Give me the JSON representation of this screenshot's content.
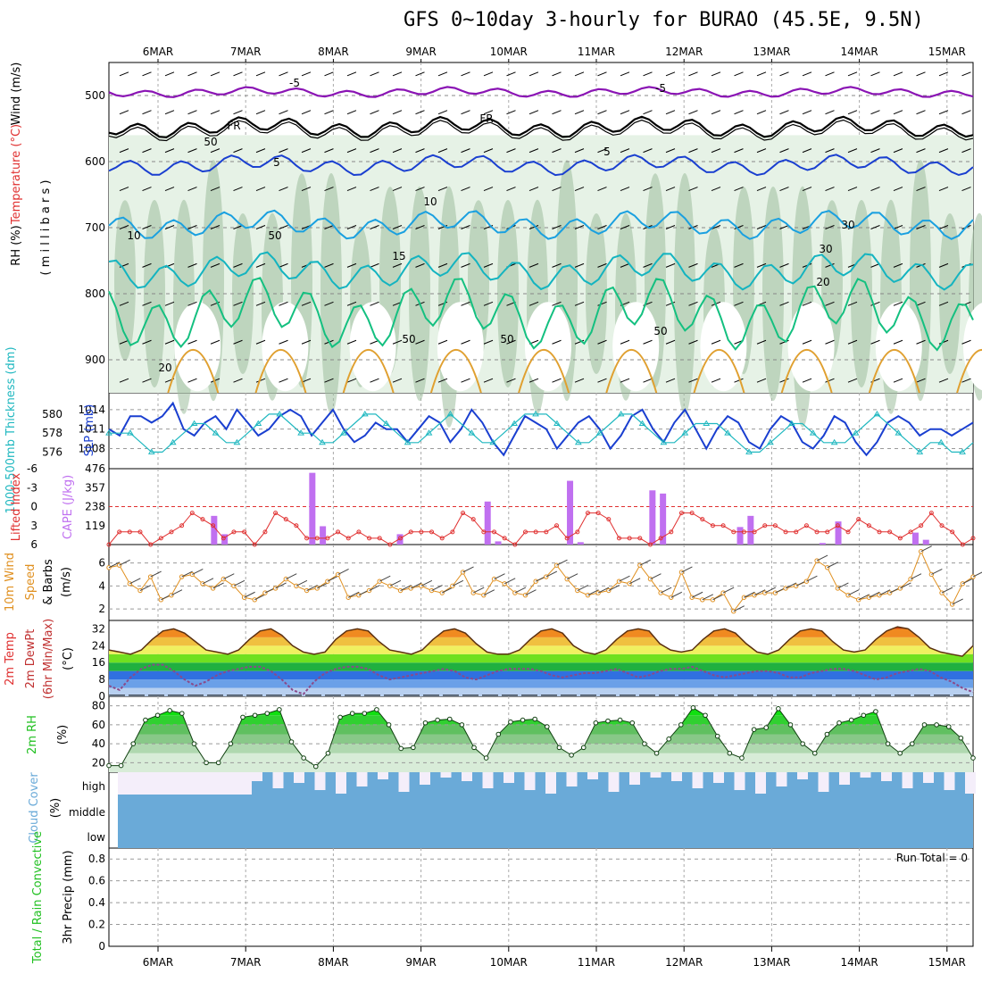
{
  "title": "GFS 0~10day 3-hourly for BURAO (45.5E, 9.5N)",
  "colors": {
    "rh_fill": "#6aa66a",
    "temp_purple": "#8a14b4",
    "temp_black": "#000000",
    "temp_blue": "#1a3fd0",
    "temp_lblue": "#1aa0e0",
    "temp_teal": "#14b4c0",
    "temp_green": "#14c080",
    "temp_orange": "#e0a030",
    "slp": "#1a3fd0",
    "thickness": "#20b8c0",
    "lifted": "#e03030",
    "cape": "#c070f0",
    "wind": "#e09020",
    "rh2m": "#20c020",
    "cloud": "#6aaad8"
  },
  "chart_data": {
    "type": "line",
    "title": "GFS 0~10day 3-hourly for BURAO (45.5E, 9.5N)",
    "x_dates": [
      "6MAR",
      "7MAR",
      "8MAR",
      "9MAR",
      "10MAR",
      "11MAR",
      "12MAR",
      "13MAR",
      "14MAR",
      "15MAR"
    ],
    "panels": [
      {
        "id": "upper_air",
        "ylabel_parts": [
          "Wind (m/s)",
          "Temperature (°C)",
          "RH (%)"
        ],
        "ylabel_mid": "( m i l l i b a r s )",
        "yticks": [
          500,
          600,
          700,
          800,
          900
        ],
        "ylim": [
          950,
          450
        ],
        "contour_labels": [
          "-5",
          "-5",
          "FR",
          "FR",
          "5",
          "5",
          "10",
          "10",
          "15",
          "20",
          "20",
          "50",
          "50",
          "30",
          "30",
          "50",
          "50",
          "50"
        ]
      },
      {
        "id": "slp_thickness",
        "ylabel_left": "1000-500mb Thickness (dm)",
        "ylabel_right": "SLP (mb)",
        "yticks_left": [
          580,
          578,
          576
        ],
        "yticks_right": [
          1014,
          1011,
          1008
        ],
        "slp_values": [
          1011,
          1010,
          1013,
          1013,
          1012,
          1013,
          1015,
          1011,
          1010,
          1012,
          1013,
          1011,
          1014,
          1012,
          1010,
          1011,
          1013,
          1014,
          1013,
          1010,
          1012,
          1014,
          1011,
          1009,
          1010,
          1012,
          1011,
          1011,
          1009,
          1011,
          1013,
          1012,
          1009,
          1011,
          1014,
          1012,
          1009,
          1007,
          1010,
          1013,
          1012,
          1011,
          1008,
          1010,
          1012,
          1013,
          1011,
          1008,
          1010,
          1013,
          1014,
          1011,
          1009,
          1012,
          1014,
          1011,
          1008,
          1011,
          1013,
          1012,
          1009,
          1008,
          1011,
          1013,
          1012,
          1009,
          1008,
          1010,
          1013,
          1012,
          1009,
          1007,
          1009,
          1012,
          1013,
          1012,
          1010,
          1011,
          1011,
          1010,
          1011,
          1012
        ],
        "thickness_values": [
          578,
          578,
          578,
          577,
          576,
          576,
          577,
          578,
          579,
          579,
          578,
          577,
          577,
          578,
          579,
          580,
          580,
          579,
          578,
          578,
          577,
          577,
          578,
          579,
          580,
          580,
          579,
          578,
          577,
          577,
          578,
          579,
          580,
          579,
          578,
          577,
          577,
          578,
          579,
          580,
          580,
          580,
          579,
          578,
          577,
          577,
          578,
          579,
          580,
          580,
          579,
          578,
          577,
          577,
          578,
          579,
          579,
          579,
          578,
          577,
          576,
          576,
          577,
          578,
          579,
          579,
          578,
          577,
          577,
          577,
          578,
          579,
          580,
          579,
          578,
          577,
          576,
          577,
          577,
          576,
          576,
          577
        ]
      },
      {
        "id": "lifted_cape",
        "ylabel_left": "Lifted Index",
        "ylabel_right": "CAPE (J/kg)",
        "yticks_left": [
          "-6",
          "-3",
          "0",
          "3",
          "6"
        ],
        "yticks_right": [
          476,
          357,
          238,
          119
        ],
        "lifted_values": [
          6,
          4,
          4,
          4,
          6,
          5,
          4,
          3,
          1,
          2,
          3,
          5,
          4,
          4,
          6,
          4,
          1,
          2,
          3,
          5,
          5,
          5,
          4,
          5,
          4,
          5,
          5,
          6,
          5,
          4,
          4,
          4,
          5,
          4,
          1,
          2,
          4,
          4,
          5,
          6,
          4,
          4,
          4,
          3,
          5,
          4,
          1,
          1,
          2,
          5,
          5,
          5,
          6,
          5,
          4,
          1,
          1,
          2,
          3,
          3,
          4,
          4,
          4,
          3,
          3,
          4,
          4,
          3,
          4,
          4,
          3,
          4,
          2,
          3,
          4,
          4,
          5,
          4,
          3,
          1,
          3,
          4,
          6,
          5
        ],
        "cape_bars": [
          {
            "x": 6.64,
            "v": 180
          },
          {
            "x": 6.76,
            "v": 65
          },
          {
            "x": 7.76,
            "v": 450
          },
          {
            "x": 7.88,
            "v": 115
          },
          {
            "x": 8.76,
            "v": 65
          },
          {
            "x": 9.76,
            "v": 270
          },
          {
            "x": 9.88,
            "v": 20
          },
          {
            "x": 10.7,
            "v": 400
          },
          {
            "x": 10.82,
            "v": 15
          },
          {
            "x": 11.64,
            "v": 340
          },
          {
            "x": 11.76,
            "v": 320
          },
          {
            "x": 12.64,
            "v": 110
          },
          {
            "x": 12.76,
            "v": 180
          },
          {
            "x": 13.58,
            "v": 10
          },
          {
            "x": 13.76,
            "v": 145
          },
          {
            "x": 14.64,
            "v": 75
          },
          {
            "x": 14.76,
            "v": 30
          }
        ]
      },
      {
        "id": "wind10m",
        "ylabel": "10m Wind Speed (m/s) & Barbs",
        "yticks": [
          6,
          4,
          2
        ],
        "ylim": [
          1,
          7.6
        ],
        "wind_values": [
          5.6,
          5.8,
          4.2,
          3.6,
          4.8,
          2.8,
          3.2,
          4.8,
          5.0,
          4.2,
          3.8,
          4.6,
          4.0,
          3.0,
          2.8,
          3.4,
          3.8,
          4.6,
          4.0,
          3.6,
          3.8,
          4.4,
          5.0,
          3.0,
          3.2,
          3.6,
          4.4,
          4.0,
          3.6,
          3.8,
          4.0,
          3.6,
          3.4,
          4.0,
          5.2,
          3.4,
          3.2,
          4.6,
          4.2,
          3.4,
          3.2,
          4.4,
          4.8,
          5.8,
          4.6,
          3.6,
          3.2,
          3.4,
          3.6,
          4.4,
          4.2,
          5.8,
          4.6,
          3.4,
          3.0,
          5.2,
          3.0,
          2.8,
          2.8,
          3.4,
          1.8,
          3.0,
          3.2,
          3.4,
          3.4,
          3.8,
          4.0,
          4.4,
          6.2,
          5.6,
          3.8,
          3.2,
          2.8,
          3.0,
          3.2,
          3.4,
          3.8,
          4.6,
          7.0,
          5.0,
          3.4,
          2.4,
          4.2,
          4.8
        ]
      },
      {
        "id": "temp2m",
        "ylabel": "2m Temp 2m DewPt (6hr Min/Max) (°C)",
        "yticks": [
          32,
          24,
          16,
          8,
          0
        ],
        "temp_values": [
          22,
          21,
          20,
          22,
          27,
          31,
          32,
          30,
          26,
          22,
          21,
          20,
          22,
          27,
          31,
          32,
          29,
          24,
          21,
          20,
          21,
          27,
          31,
          32,
          31,
          26,
          22,
          21,
          20,
          22,
          27,
          31,
          32,
          30,
          25,
          21,
          20,
          20,
          22,
          27,
          31,
          32,
          30,
          24,
          21,
          20,
          22,
          27,
          31,
          32,
          31,
          25,
          22,
          21,
          22,
          27,
          31,
          32,
          30,
          25,
          21,
          20,
          22,
          27,
          31,
          32,
          31,
          26,
          22,
          21,
          22,
          27,
          31,
          33,
          32,
          28,
          23,
          21,
          20,
          19,
          24
        ],
        "dewpt_values": [
          5,
          3,
          9,
          13,
          15,
          15,
          12,
          8,
          5,
          7,
          10,
          12,
          13,
          14,
          14,
          12,
          8,
          3,
          1,
          7,
          11,
          13,
          14,
          14,
          13,
          10,
          8,
          9,
          10,
          11,
          12,
          13,
          12,
          9,
          8,
          10,
          12,
          13,
          13,
          13,
          12,
          10,
          9,
          10,
          11,
          11,
          12,
          13,
          11,
          9,
          10,
          12,
          13,
          13,
          14,
          12,
          10,
          9,
          10,
          11,
          12,
          12,
          11,
          9,
          9,
          11,
          12,
          13,
          13,
          12,
          10,
          8,
          9,
          11,
          12,
          13,
          12,
          9,
          7,
          4,
          2
        ]
      },
      {
        "id": "rh2m",
        "ylabel": "2m RH (%)",
        "yticks": [
          80,
          60,
          40,
          20
        ],
        "rh_values": [
          17,
          17,
          40,
          65,
          70,
          75,
          72,
          40,
          20,
          20,
          40,
          68,
          70,
          72,
          76,
          42,
          25,
          16,
          30,
          68,
          72,
          72,
          76,
          60,
          35,
          36,
          62,
          65,
          66,
          60,
          36,
          25,
          50,
          63,
          65,
          66,
          58,
          36,
          28,
          36,
          62,
          64,
          65,
          62,
          40,
          30,
          45,
          60,
          78,
          70,
          48,
          30,
          25,
          55,
          57,
          77,
          60,
          40,
          30,
          50,
          62,
          65,
          70,
          74,
          40,
          30,
          40,
          60,
          60,
          58,
          46,
          25
        ],
        "ylim": [
          10,
          90
        ]
      },
      {
        "id": "cloud",
        "ylabel": "Cloud Cover (%)",
        "yticks": [
          "high",
          "middle",
          "low"
        ]
      },
      {
        "id": "precip",
        "ylabel_left": "Total / Rain Convective",
        "ylabel_right": "3hr Precip (mm)",
        "yticks": [
          "0.8",
          "0.6",
          "0.4",
          "0.2",
          "0"
        ],
        "ylim": [
          0,
          0.9
        ],
        "run_total": "Run Total = 0"
      }
    ]
  }
}
